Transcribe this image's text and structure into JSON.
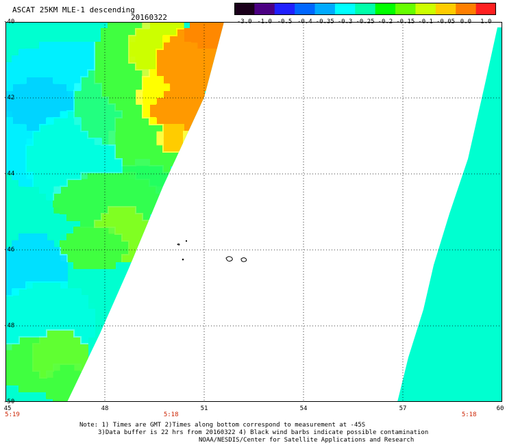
{
  "header": {
    "title": "ASCAT 25KM MLE-1 descending",
    "date": "20160322"
  },
  "colorbar": {
    "labels": [
      "-3.0",
      "-1.0",
      "-0.5",
      "-0.4",
      "-0.35",
      "-0.3",
      "-0.25",
      "-0.2",
      "-0.15",
      "-0.1",
      "-0.05",
      "0.0",
      "1.0"
    ],
    "colors": [
      "#1a001a",
      "#4b0082",
      "#2020ff",
      "#0066ff",
      "#00aaff",
      "#00ffff",
      "#00ffaa",
      "#00ff00",
      "#66ff00",
      "#ccff00",
      "#ffcc00",
      "#ff7f00",
      "#ff2020"
    ]
  },
  "map": {
    "lat_labels": [
      "-40",
      "-42",
      "-44",
      "-46",
      "-48",
      "-50"
    ],
    "lon_labels": [
      "45",
      "48",
      "51",
      "54",
      "57",
      "60"
    ],
    "time_labels": [
      {
        "text": "5:19",
        "lon": 45
      },
      {
        "text": "5:18",
        "lon": 50
      },
      {
        "text": "5:18",
        "lon": 59
      }
    ],
    "time_color": "#cc2200",
    "lat_range": [
      -50,
      -40
    ],
    "lon_range": [
      45,
      60
    ]
  },
  "notes": {
    "line1": "Note: 1) Times are GMT 2)Times along bottom correspond to measurement at -45S",
    "line2": "3)Data buffer is 22 hrs from 20160322 4) Black wind barbs indicate possible contamination",
    "line3": "NOAA/NESDIS/Center for Satellite Applications and Research"
  }
}
